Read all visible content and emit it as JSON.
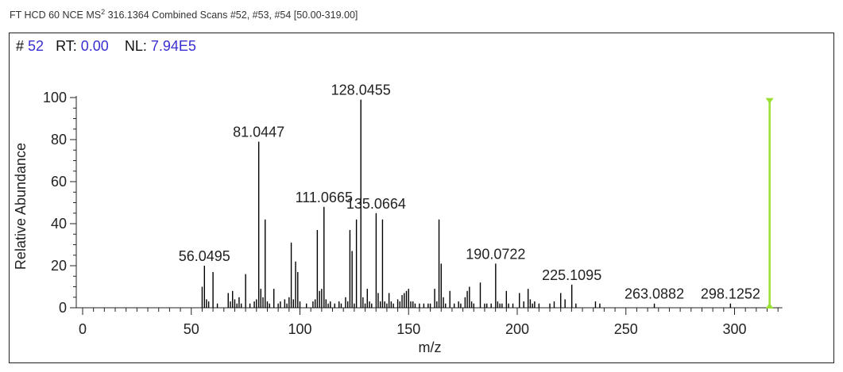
{
  "header": {
    "pre": "FT HCD 60 NCE MS",
    "sup": "2",
    "post": " 316.1364 Combined Scans #52, #53, #54 [50.00-319.00]"
  },
  "info": {
    "scan_label": "#",
    "scan_value": "52",
    "rt_label": "RT:",
    "rt_value": "0.00",
    "nl_label": "NL:",
    "nl_value": "7.94E5"
  },
  "colors": {
    "peak": "#000000",
    "precursor_marker": "#99e033",
    "value": "#3a2fd0"
  },
  "chart_data": {
    "type": "bar",
    "xlabel": "m/z",
    "ylabel": "Relative Abundance",
    "xlim": [
      -5,
      322
    ],
    "ylim": [
      0,
      100
    ],
    "x_ticks": [
      0,
      50,
      100,
      150,
      200,
      250,
      300
    ],
    "y_ticks": [
      0,
      20,
      40,
      60,
      80,
      100
    ],
    "precursor": {
      "mz": 316.1364,
      "value": 99
    },
    "peak_labels": [
      {
        "mz": 56.0495,
        "text": "56.0495"
      },
      {
        "mz": 81.0447,
        "text": "81.0447"
      },
      {
        "mz": 111.0665,
        "text": "111.0665"
      },
      {
        "mz": 128.0455,
        "text": "128.0455"
      },
      {
        "mz": 135.0664,
        "text": "135.0664"
      },
      {
        "mz": 190.0722,
        "text": "190.0722"
      },
      {
        "mz": 225.1095,
        "text": "225.1095"
      },
      {
        "mz": 263.0882,
        "text": "263.0882"
      },
      {
        "mz": 298.1252,
        "text": "298.1252"
      }
    ],
    "peaks": [
      [
        55.0,
        10
      ],
      [
        56.0495,
        20
      ],
      [
        57.0,
        4
      ],
      [
        58.0,
        3
      ],
      [
        60.0,
        17
      ],
      [
        62.0,
        2
      ],
      [
        67.0,
        7
      ],
      [
        68.0,
        3
      ],
      [
        69.0,
        8
      ],
      [
        70.0,
        4
      ],
      [
        71.0,
        2
      ],
      [
        72.0,
        5
      ],
      [
        73.0,
        2
      ],
      [
        75.0,
        16
      ],
      [
        77.0,
        2
      ],
      [
        79.0,
        3
      ],
      [
        80.0,
        4
      ],
      [
        81.0447,
        79
      ],
      [
        82.0,
        9
      ],
      [
        83.0,
        5
      ],
      [
        84.0,
        42
      ],
      [
        85.0,
        3
      ],
      [
        86.0,
        2
      ],
      [
        88.0,
        9
      ],
      [
        90.0,
        2
      ],
      [
        91.0,
        3
      ],
      [
        93.0,
        4
      ],
      [
        94.0,
        2
      ],
      [
        95.0,
        5
      ],
      [
        96.0,
        31
      ],
      [
        97.0,
        4
      ],
      [
        98.0,
        22
      ],
      [
        99.0,
        17
      ],
      [
        100.0,
        3
      ],
      [
        103.0,
        2
      ],
      [
        106.0,
        3
      ],
      [
        107.0,
        4
      ],
      [
        108.0,
        37
      ],
      [
        109.0,
        8
      ],
      [
        110.0,
        9
      ],
      [
        111.0665,
        48
      ],
      [
        112.0,
        4
      ],
      [
        113.0,
        2
      ],
      [
        114.0,
        3
      ],
      [
        116.0,
        2
      ],
      [
        118.0,
        3
      ],
      [
        119.0,
        2
      ],
      [
        121.0,
        5
      ],
      [
        122.0,
        3
      ],
      [
        123.0,
        37
      ],
      [
        124.0,
        27
      ],
      [
        125.0,
        2
      ],
      [
        126.0,
        42
      ],
      [
        128.0455,
        99
      ],
      [
        129.0,
        5
      ],
      [
        130.0,
        2
      ],
      [
        131.0,
        9
      ],
      [
        132.0,
        3
      ],
      [
        133.0,
        2
      ],
      [
        135.0664,
        45
      ],
      [
        136.0,
        7
      ],
      [
        137.0,
        3
      ],
      [
        138.0,
        42
      ],
      [
        139.0,
        3
      ],
      [
        140.0,
        2
      ],
      [
        141.0,
        7
      ],
      [
        142.0,
        3
      ],
      [
        143.0,
        2
      ],
      [
        145.0,
        4
      ],
      [
        146.0,
        3
      ],
      [
        147.0,
        6
      ],
      [
        148.0,
        7
      ],
      [
        149.0,
        8
      ],
      [
        150.0,
        9
      ],
      [
        151.0,
        3
      ],
      [
        152.0,
        3
      ],
      [
        153.0,
        2
      ],
      [
        155.0,
        2
      ],
      [
        157.0,
        2
      ],
      [
        159.0,
        2
      ],
      [
        160.0,
        2
      ],
      [
        162.0,
        9
      ],
      [
        163.0,
        3
      ],
      [
        164.0,
        42
      ],
      [
        165.0,
        21
      ],
      [
        166.0,
        5
      ],
      [
        167.0,
        2
      ],
      [
        169.0,
        8
      ],
      [
        171.0,
        2
      ],
      [
        173.0,
        3
      ],
      [
        174.0,
        2
      ],
      [
        176.0,
        5
      ],
      [
        177.0,
        8
      ],
      [
        178.0,
        10
      ],
      [
        179.0,
        3
      ],
      [
        180.0,
        2
      ],
      [
        183.0,
        12
      ],
      [
        185.0,
        2
      ],
      [
        186.0,
        2
      ],
      [
        188.0,
        2
      ],
      [
        190.0722,
        21
      ],
      [
        191.0,
        3
      ],
      [
        192.0,
        2
      ],
      [
        193.0,
        2
      ],
      [
        195.0,
        8
      ],
      [
        196.0,
        2
      ],
      [
        198.0,
        2
      ],
      [
        201.0,
        7
      ],
      [
        203.0,
        3
      ],
      [
        205.0,
        9
      ],
      [
        206.0,
        4
      ],
      [
        207.0,
        2
      ],
      [
        208.0,
        3
      ],
      [
        210.0,
        2
      ],
      [
        215.0,
        2
      ],
      [
        217.0,
        3
      ],
      [
        220.0,
        7
      ],
      [
        222.0,
        4
      ],
      [
        225.1095,
        11
      ],
      [
        227.0,
        2
      ],
      [
        236.0,
        3
      ],
      [
        238.0,
        2
      ],
      [
        263.0882,
        2
      ],
      [
        298.1252,
        2
      ]
    ]
  }
}
